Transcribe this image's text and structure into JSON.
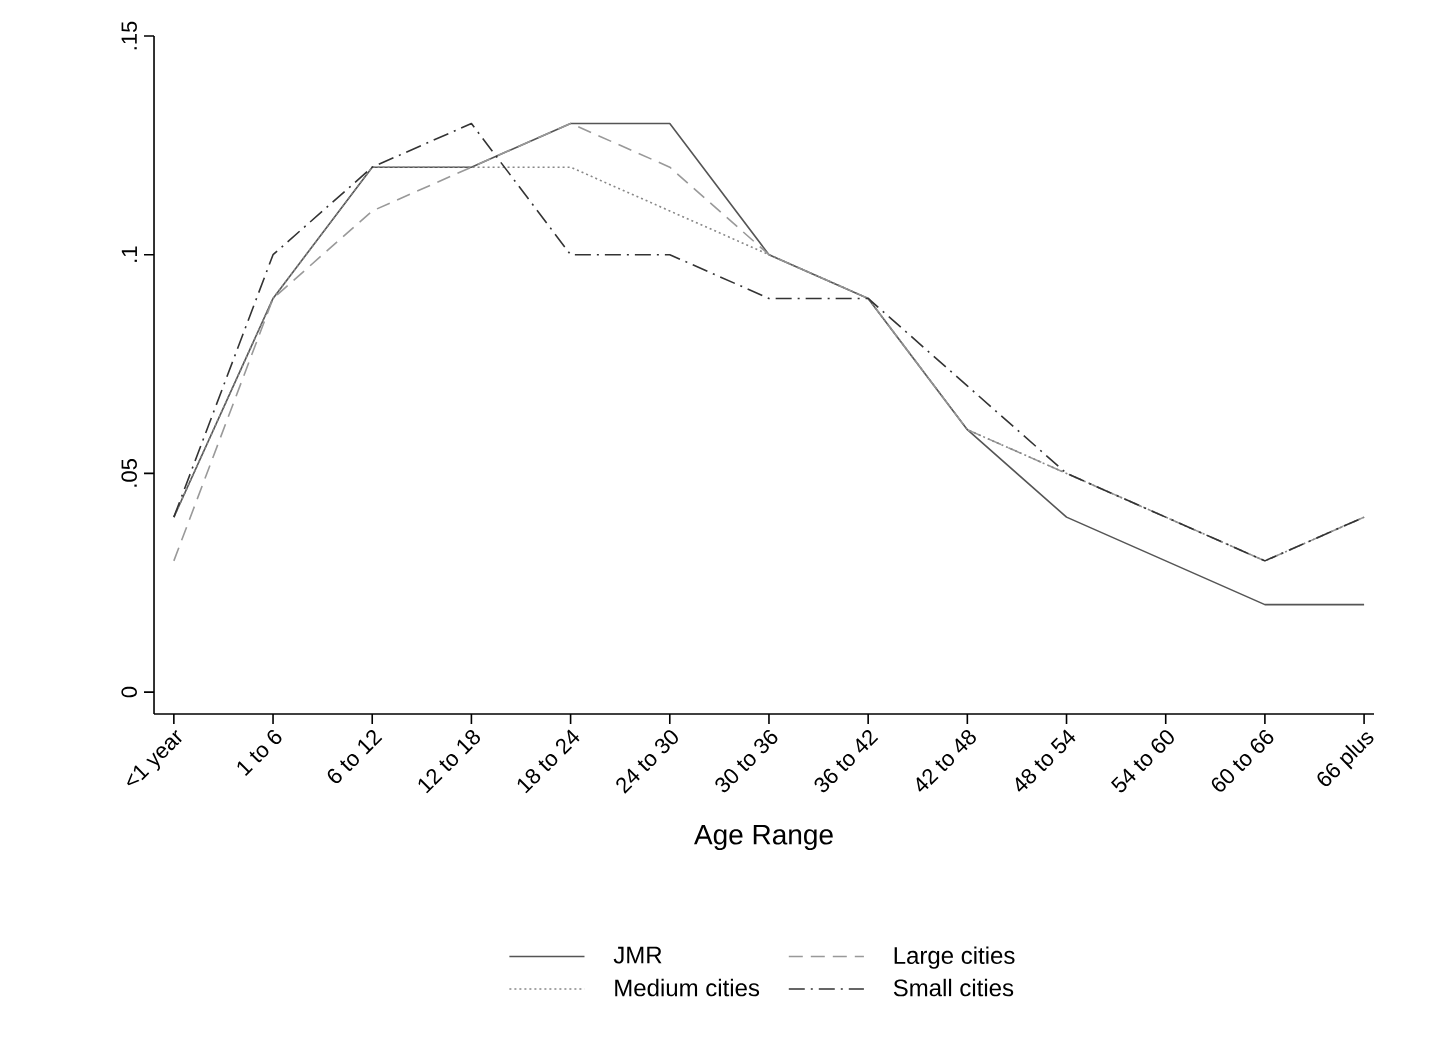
{
  "chart_data": {
    "type": "line",
    "xlabel": "Age Range",
    "categories": [
      "<1 year",
      "1 to 6",
      "6 to 12",
      "12 to 18",
      "18 to 24",
      "24 to 30",
      "30 to 36",
      "36 to 42",
      "42 to 48",
      "48 to 54",
      "54 to 60",
      "60 to 66",
      "66 plus"
    ],
    "series": [
      {
        "name": "JMR",
        "color": "#555555",
        "line_style": "solid",
        "values": [
          0.04,
          0.09,
          0.12,
          0.12,
          0.13,
          0.13,
          0.1,
          0.09,
          0.06,
          0.04,
          0.03,
          0.02,
          0.02
        ]
      },
      {
        "name": "Large cities",
        "color": "#999999",
        "line_style": "dashed",
        "values": [
          0.03,
          0.09,
          0.11,
          0.12,
          0.13,
          0.12,
          0.1,
          0.09,
          0.06,
          0.05,
          0.04,
          0.03,
          0.04
        ]
      },
      {
        "name": "Medium cities",
        "color": "#888888",
        "line_style": "dotted",
        "values": [
          0.04,
          0.09,
          0.12,
          0.12,
          0.12,
          0.11,
          0.1,
          0.09,
          0.06,
          0.05,
          0.04,
          0.03,
          0.04
        ]
      },
      {
        "name": "Small cities",
        "color": "#333333",
        "line_style": "dashdotted",
        "values": [
          0.04,
          0.1,
          0.12,
          0.13,
          0.1,
          0.1,
          0.09,
          0.09,
          0.07,
          0.05,
          0.04,
          0.03,
          0.04
        ]
      }
    ],
    "ylim": [
      -0.005,
      0.15
    ],
    "yticks": [
      {
        "value": 0,
        "label": "0"
      },
      {
        "value": 0.05,
        "label": ".05"
      },
      {
        "value": 0.1,
        "label": ".1"
      },
      {
        "value": 0.15,
        "label": ".15"
      }
    ],
    "grid": false,
    "legend": "bottom",
    "marker": "none"
  }
}
